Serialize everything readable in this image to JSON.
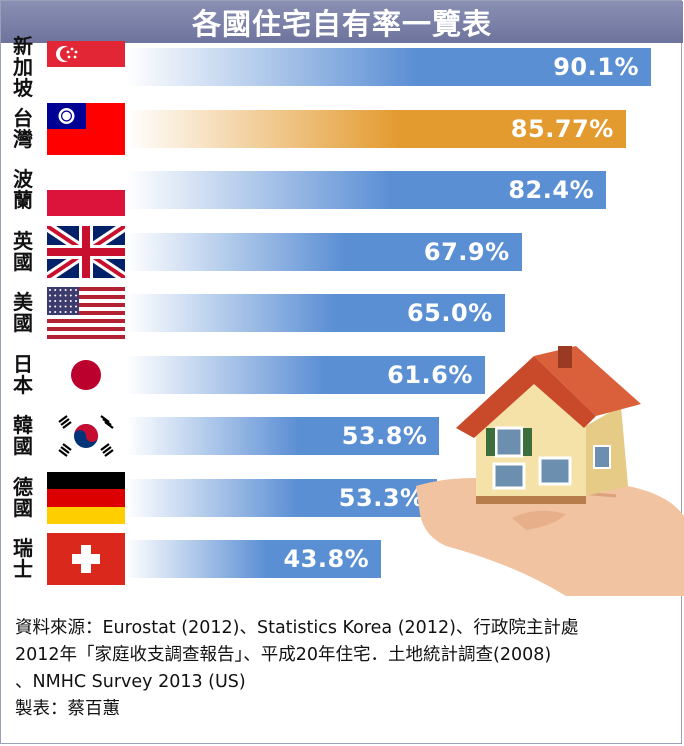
{
  "title": "各國住宅自有率一覽表",
  "chart_data": {
    "type": "bar",
    "orientation": "horizontal",
    "title": "各國住宅自有率一覽表",
    "unit": "%",
    "categories": [
      "新加坡",
      "台灣",
      "波蘭",
      "英國",
      "美國",
      "日本",
      "韓國",
      "德國",
      "瑞士"
    ],
    "values": [
      90.1,
      85.77,
      82.4,
      67.9,
      65.0,
      61.6,
      53.8,
      53.3,
      43.8
    ],
    "value_labels": [
      "90.1%",
      "85.77%",
      "82.4%",
      "67.9%",
      "65.0%",
      "61.6%",
      "53.8%",
      "53.3%",
      "43.8%"
    ],
    "flag_icons": [
      "singapore-flag-icon",
      "taiwan-flag-icon",
      "poland-flag-icon",
      "uk-flag-icon",
      "usa-flag-icon",
      "japan-flag-icon",
      "korea-flag-icon",
      "germany-flag-icon",
      "switzerland-flag-icon"
    ],
    "highlight_category": "台灣",
    "colors": {
      "bar": "#5b8fd4",
      "highlight": "#e39a2e"
    },
    "xlim": [
      0,
      100
    ],
    "grid": false,
    "legend": "none"
  },
  "source_lines": [
    "資料來源：Eurostat (2012)、Statistics Korea (2012)、行政院主計處",
    "2012年「家庭收支調查報告」、平成20年住宅．土地統計調查(2008)",
    "、NMHC Survey 2013 (US)",
    "製表：蔡百蕙"
  ]
}
